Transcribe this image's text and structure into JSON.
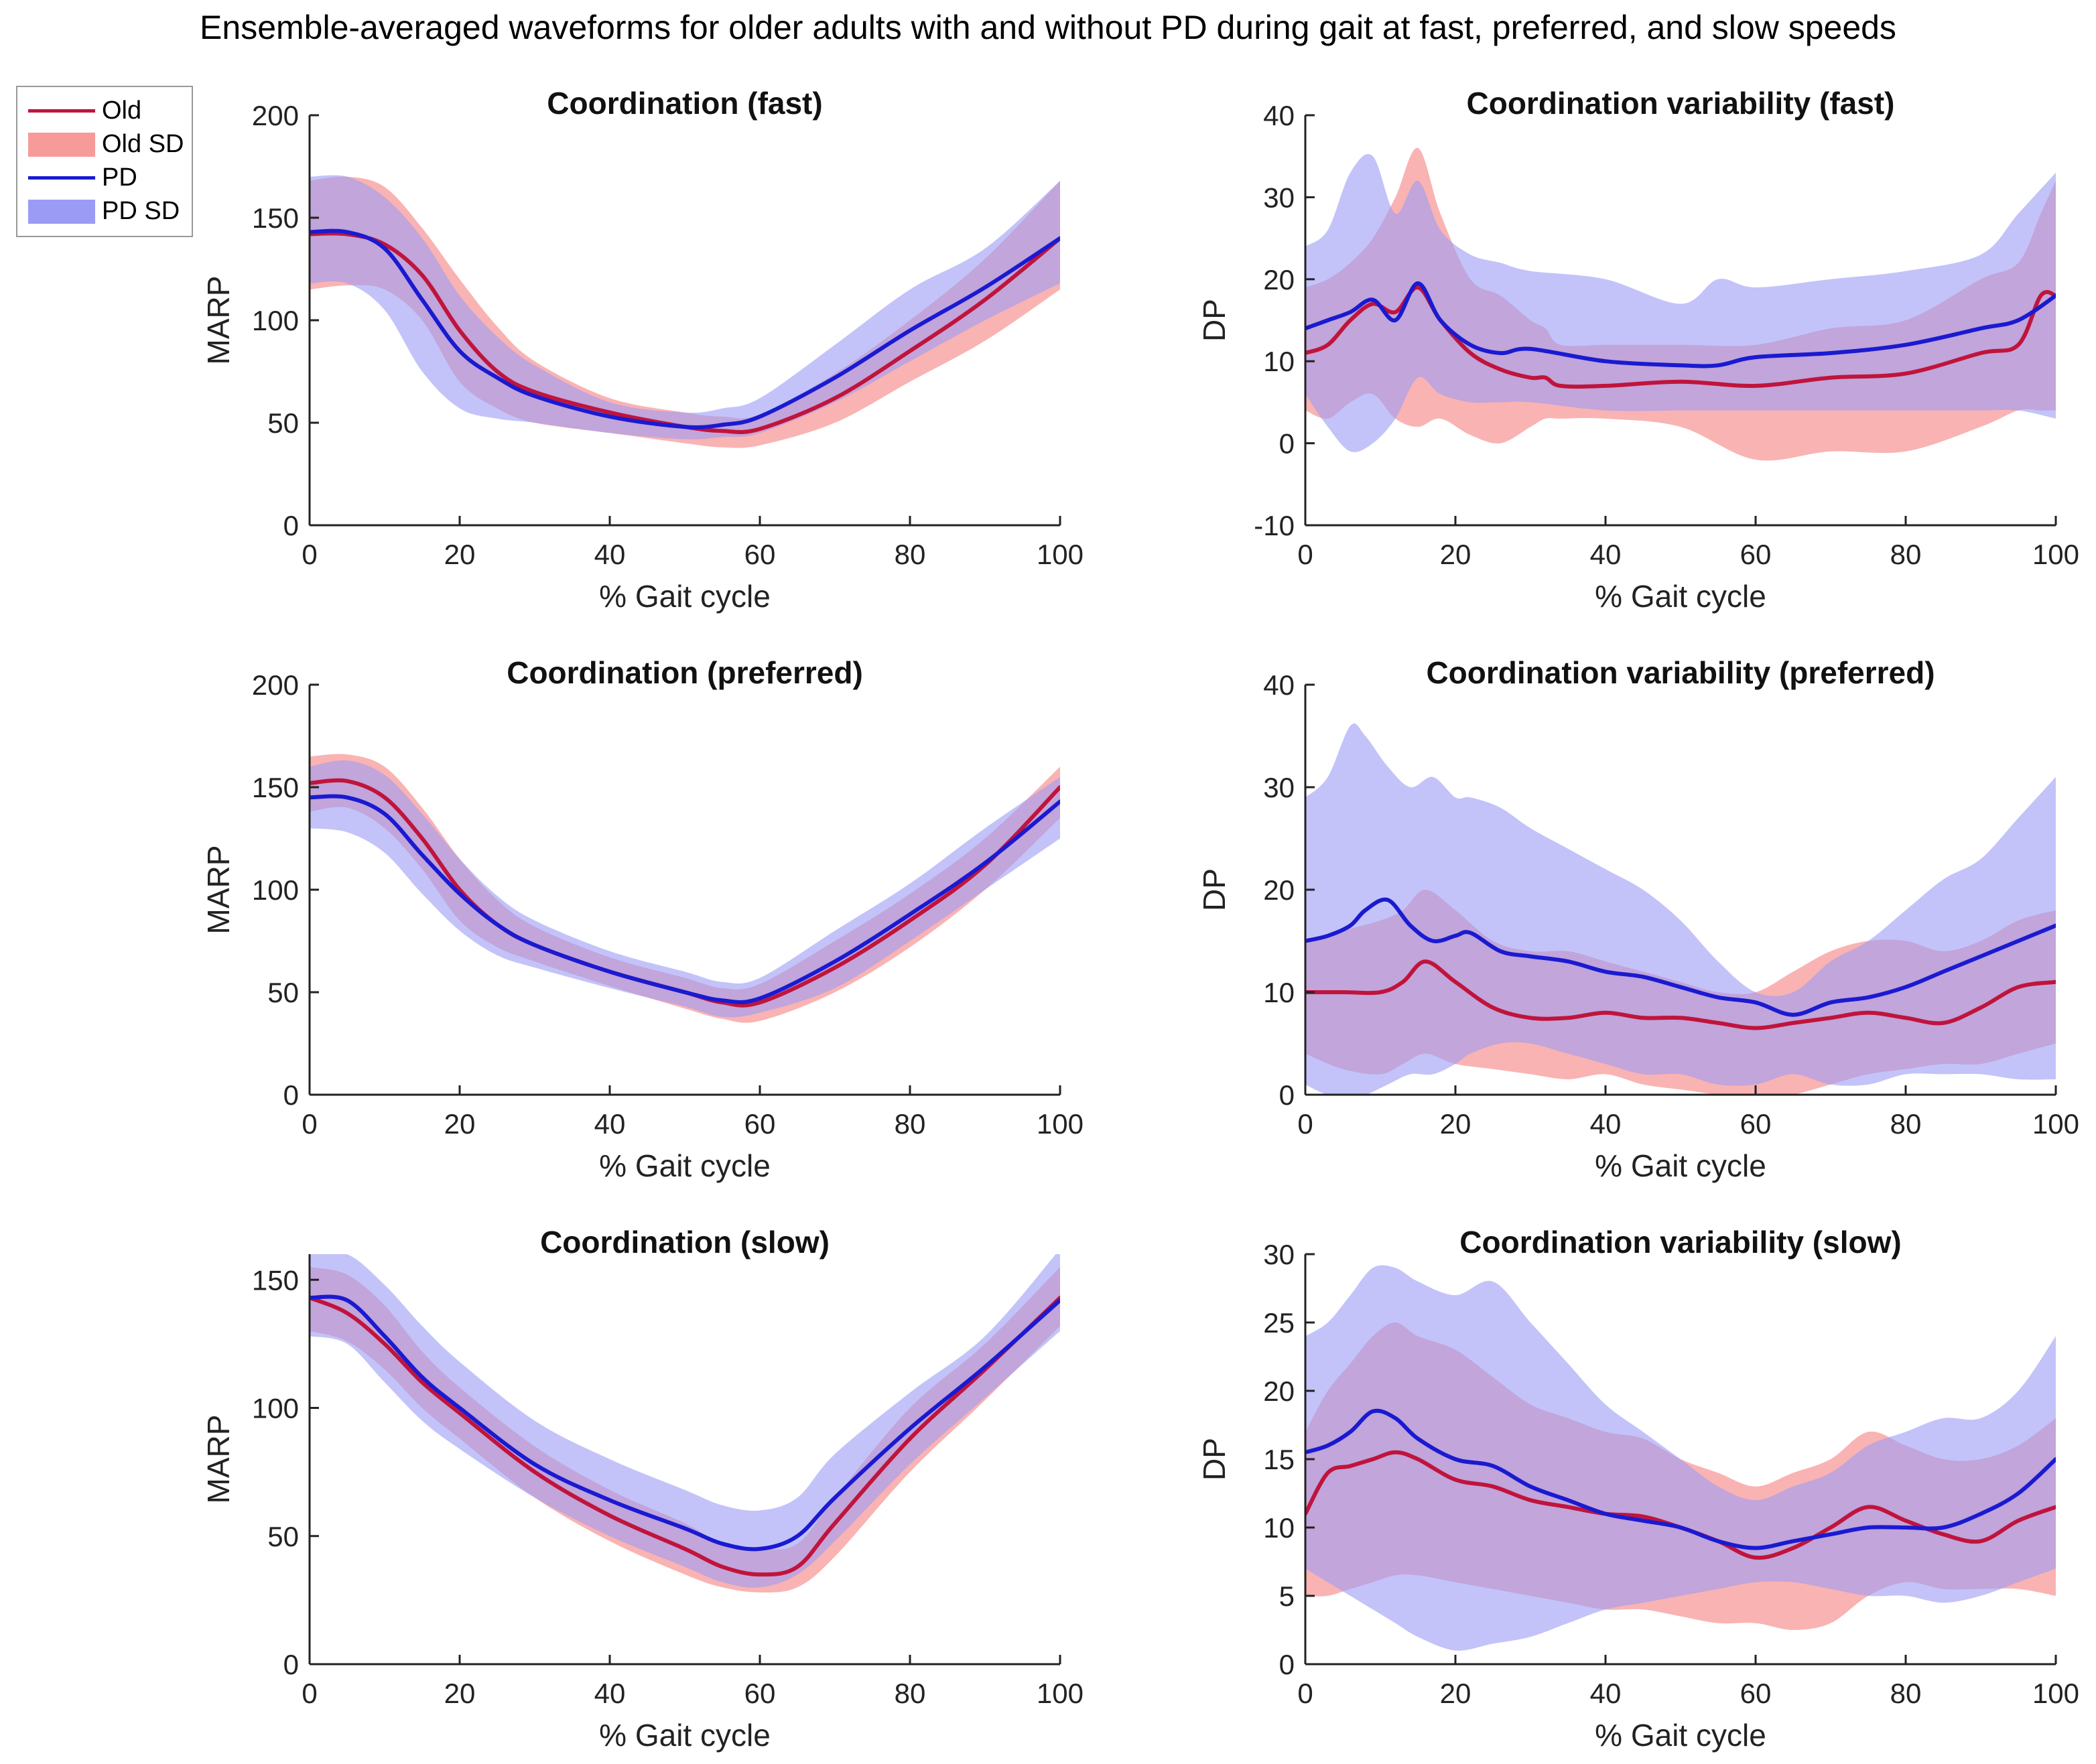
{
  "figure_title": "Ensemble-averaged waveforms for older adults with and without PD during gait at fast, preferred, and slow speeds",
  "colors": {
    "old_line": "#c0143c",
    "old_fill": "#f79a9a",
    "pd_line": "#1a1ad0",
    "pd_fill": "#9b9bf5"
  },
  "legend": {
    "items": [
      {
        "label": "Old",
        "kind": "line",
        "color_key": "old_line"
      },
      {
        "label": "Old SD",
        "kind": "fill",
        "color_key": "old_fill"
      },
      {
        "label": "PD",
        "kind": "line",
        "color_key": "pd_line"
      },
      {
        "label": "PD SD",
        "kind": "fill",
        "color_key": "pd_fill"
      }
    ]
  },
  "chart_data": [
    {
      "type": "line",
      "title": "Coordination (fast)",
      "xlabel": "% Gait cycle",
      "ylabel": "MARP",
      "xlim": [
        0,
        100
      ],
      "ylim": [
        0,
        200
      ],
      "xticks": [
        0,
        20,
        40,
        60,
        80,
        100
      ],
      "yticks": [
        0,
        50,
        100,
        150,
        200
      ],
      "series": [
        {
          "name": "Old",
          "x": [
            0,
            5,
            10,
            15,
            20,
            25,
            30,
            40,
            50,
            55,
            60,
            70,
            80,
            90,
            100
          ],
          "mean": [
            142,
            142,
            137,
            122,
            95,
            75,
            65,
            55,
            48,
            46,
            47,
            62,
            85,
            110,
            140
          ],
          "lower": [
            115,
            117,
            115,
            100,
            70,
            57,
            50,
            45,
            40,
            38,
            39,
            50,
            70,
            90,
            115
          ],
          "upper": [
            168,
            170,
            165,
            145,
            120,
            97,
            80,
            62,
            55,
            53,
            54,
            74,
            100,
            130,
            168
          ]
        },
        {
          "name": "PD",
          "x": [
            0,
            5,
            10,
            15,
            20,
            25,
            30,
            40,
            50,
            55,
            60,
            70,
            80,
            90,
            100
          ],
          "mean": [
            143,
            143,
            135,
            110,
            85,
            72,
            63,
            53,
            48,
            49,
            53,
            72,
            95,
            116,
            140
          ],
          "lower": [
            118,
            118,
            105,
            75,
            57,
            52,
            50,
            45,
            42,
            43,
            45,
            60,
            80,
            100,
            118
          ],
          "upper": [
            170,
            170,
            160,
            140,
            112,
            92,
            78,
            60,
            55,
            57,
            62,
            88,
            115,
            135,
            168
          ]
        }
      ]
    },
    {
      "type": "line",
      "title": "Coordination variability (fast)",
      "xlabel": "% Gait cycle",
      "ylabel": "DP",
      "xlim": [
        0,
        100
      ],
      "ylim": [
        -10,
        40
      ],
      "xticks": [
        0,
        20,
        40,
        60,
        80,
        100
      ],
      "yticks": [
        -10,
        0,
        10,
        20,
        30,
        40
      ],
      "series": [
        {
          "name": "Old",
          "x": [
            0,
            3,
            6,
            9,
            12,
            15,
            18,
            22,
            26,
            30,
            32,
            34,
            40,
            50,
            60,
            70,
            80,
            90,
            95,
            98,
            100
          ],
          "mean": [
            11,
            12,
            15,
            17,
            16,
            19,
            15,
            11,
            9,
            8,
            8,
            7,
            7,
            7.5,
            7,
            8,
            8.5,
            11,
            12,
            18,
            18
          ],
          "lower": [
            4,
            3,
            5,
            6,
            3,
            2,
            3,
            1,
            0,
            2,
            3,
            3,
            3,
            2,
            -2,
            -1,
            -1,
            2,
            4,
            4,
            4
          ],
          "upper": [
            19,
            20,
            22,
            25,
            30,
            36,
            28,
            20,
            18,
            15,
            14,
            12,
            12,
            12,
            12,
            14,
            15,
            20,
            22,
            28,
            32
          ]
        },
        {
          "name": "PD",
          "x": [
            0,
            3,
            6,
            9,
            12,
            15,
            18,
            22,
            26,
            30,
            40,
            50,
            55,
            60,
            70,
            80,
            90,
            95,
            100
          ],
          "mean": [
            14,
            15,
            16,
            17.5,
            15,
            19.5,
            15,
            12,
            11,
            11.5,
            10,
            9.5,
            9.5,
            10.5,
            11,
            12,
            14,
            15,
            18
          ],
          "lower": [
            6,
            2,
            -1,
            0,
            3,
            8,
            6,
            5,
            5,
            5,
            4,
            4,
            4,
            4,
            4,
            4,
            4,
            4,
            3
          ],
          "upper": [
            24,
            26,
            33,
            35,
            28,
            32,
            26,
            23,
            22,
            21,
            20,
            17,
            20,
            19,
            20,
            21,
            23,
            28,
            33
          ]
        }
      ]
    },
    {
      "type": "line",
      "title": "Coordination (preferred)",
      "xlabel": "% Gait cycle",
      "ylabel": "MARP",
      "xlim": [
        0,
        100
      ],
      "ylim": [
        0,
        200
      ],
      "xticks": [
        0,
        20,
        40,
        60,
        80,
        100
      ],
      "yticks": [
        0,
        50,
        100,
        150,
        200
      ],
      "series": [
        {
          "name": "Old",
          "x": [
            0,
            5,
            10,
            15,
            20,
            25,
            30,
            40,
            50,
            55,
            60,
            70,
            80,
            90,
            100
          ],
          "mean": [
            152,
            153,
            145,
            125,
            100,
            83,
            73,
            60,
            50,
            45,
            45,
            62,
            85,
            112,
            150
          ],
          "lower": [
            138,
            140,
            130,
            110,
            85,
            72,
            65,
            53,
            42,
            37,
            36,
            50,
            72,
            100,
            135
          ],
          "upper": [
            165,
            166,
            160,
            140,
            115,
            95,
            82,
            67,
            57,
            52,
            54,
            75,
            98,
            125,
            160
          ]
        },
        {
          "name": "PD",
          "x": [
            0,
            5,
            10,
            15,
            20,
            25,
            30,
            40,
            50,
            55,
            60,
            70,
            80,
            90,
            100
          ],
          "mean": [
            145,
            145,
            137,
            117,
            98,
            83,
            73,
            60,
            50,
            46,
            47,
            65,
            88,
            113,
            143
          ],
          "lower": [
            130,
            128,
            118,
            98,
            80,
            68,
            62,
            52,
            43,
            38,
            40,
            52,
            75,
            100,
            125
          ],
          "upper": [
            160,
            163,
            156,
            137,
            115,
            97,
            85,
            70,
            60,
            55,
            57,
            80,
            103,
            130,
            155
          ]
        }
      ]
    },
    {
      "type": "line",
      "title": "Coordination variability (preferred)",
      "xlabel": "% Gait cycle",
      "ylabel": "DP",
      "xlim": [
        0,
        100
      ],
      "ylim": [
        0,
        40
      ],
      "xticks": [
        0,
        20,
        40,
        60,
        80,
        100
      ],
      "yticks": [
        0,
        10,
        20,
        30,
        40
      ],
      "series": [
        {
          "name": "Old",
          "x": [
            0,
            5,
            10,
            13,
            16,
            20,
            25,
            30,
            35,
            40,
            45,
            50,
            55,
            60,
            65,
            70,
            75,
            80,
            85,
            90,
            95,
            100
          ],
          "mean": [
            10,
            10,
            10,
            11,
            13,
            11,
            8.5,
            7.5,
            7.5,
            8,
            7.5,
            7.5,
            7,
            6.5,
            7,
            7.5,
            8,
            7.5,
            7,
            8.5,
            10.5,
            11
          ],
          "lower": [
            4,
            2.5,
            2,
            3,
            4,
            3,
            2.5,
            2,
            1.5,
            2,
            1,
            0.5,
            0,
            -0.5,
            0,
            1,
            2,
            2.5,
            3,
            3,
            4,
            5
          ],
          "upper": [
            15,
            16,
            17,
            18,
            20,
            18,
            15,
            14,
            14,
            13,
            12,
            11,
            10,
            10,
            12,
            14,
            15,
            15,
            14,
            15,
            17,
            18
          ]
        },
        {
          "name": "PD",
          "x": [
            0,
            3,
            6,
            8,
            11,
            14,
            17,
            20,
            22,
            26,
            30,
            35,
            40,
            45,
            50,
            55,
            60,
            65,
            70,
            75,
            80,
            85,
            90,
            95,
            100
          ],
          "mean": [
            15,
            15.5,
            16.5,
            18,
            19,
            16.5,
            15,
            15.5,
            15.8,
            14,
            13.5,
            13,
            12,
            11.5,
            10.5,
            9.5,
            9,
            7.8,
            9,
            9.5,
            10.5,
            12,
            13.5,
            15,
            16.5
          ],
          "lower": [
            1,
            0,
            0,
            0,
            1,
            2,
            2,
            3,
            4,
            5,
            5,
            4,
            3,
            2,
            2,
            1,
            1,
            2,
            1,
            1,
            2,
            2,
            2,
            1.5,
            1.5
          ],
          "upper": [
            29,
            31,
            36,
            35,
            32,
            30,
            31,
            29,
            29,
            28,
            26,
            24,
            22,
            20,
            17,
            13,
            10,
            10,
            13,
            15,
            18,
            21,
            23,
            27,
            31
          ]
        }
      ]
    },
    {
      "type": "line",
      "title": "Coordination (slow)",
      "xlabel": "% Gait cycle",
      "ylabel": "MARP",
      "xlim": [
        0,
        100
      ],
      "ylim": [
        0,
        160
      ],
      "xticks": [
        0,
        20,
        40,
        60,
        80,
        100
      ],
      "yticks": [
        0,
        50,
        100,
        150
      ],
      "series": [
        {
          "name": "Old",
          "x": [
            0,
            5,
            10,
            15,
            20,
            30,
            40,
            50,
            55,
            60,
            65,
            70,
            80,
            90,
            100
          ],
          "mean": [
            143,
            137,
            125,
            110,
            98,
            75,
            58,
            45,
            38,
            35,
            38,
            55,
            88,
            115,
            143
          ],
          "lower": [
            130,
            126,
            115,
            100,
            88,
            65,
            48,
            35,
            30,
            28,
            30,
            42,
            75,
            103,
            132
          ],
          "upper": [
            155,
            152,
            140,
            122,
            108,
            85,
            68,
            55,
            47,
            45,
            47,
            65,
            100,
            125,
            155
          ]
        },
        {
          "name": "PD",
          "x": [
            0,
            5,
            10,
            15,
            20,
            30,
            40,
            50,
            55,
            60,
            65,
            70,
            80,
            90,
            100
          ],
          "mean": [
            143,
            142,
            128,
            112,
            100,
            78,
            64,
            53,
            47,
            45,
            50,
            65,
            92,
            116,
            142
          ],
          "lower": [
            128,
            125,
            110,
            95,
            84,
            65,
            50,
            38,
            32,
            30,
            35,
            48,
            78,
            104,
            130
          ],
          "upper": [
            160,
            160,
            148,
            132,
            118,
            95,
            80,
            68,
            62,
            60,
            65,
            82,
            106,
            128,
            162
          ]
        }
      ]
    },
    {
      "type": "line",
      "title": "Coordination variability (slow)",
      "xlabel": "% Gait cycle",
      "ylabel": "DP",
      "xlim": [
        0,
        100
      ],
      "ylim": [
        0,
        30
      ],
      "xticks": [
        0,
        20,
        40,
        60,
        80,
        100
      ],
      "yticks": [
        0,
        5,
        10,
        15,
        20,
        25,
        30
      ],
      "series": [
        {
          "name": "Old",
          "x": [
            0,
            3,
            6,
            9,
            12,
            15,
            20,
            25,
            30,
            35,
            40,
            45,
            50,
            55,
            60,
            65,
            70,
            75,
            80,
            85,
            90,
            95,
            100
          ],
          "mean": [
            11,
            14,
            14.5,
            15,
            15.5,
            15,
            13.5,
            13,
            12,
            11.5,
            11,
            10.8,
            10,
            9,
            7.8,
            8.5,
            10,
            11.5,
            10.5,
            9.5,
            9,
            10.5,
            11.5
          ],
          "lower": [
            5,
            5,
            5.5,
            6,
            6.5,
            6.5,
            6,
            5.5,
            5,
            4.5,
            4,
            4,
            3.5,
            3,
            3,
            2.5,
            3,
            5,
            6,
            5.5,
            5.5,
            5.5,
            5
          ],
          "upper": [
            17,
            20,
            22,
            24,
            25,
            24,
            23,
            21,
            19,
            18,
            17,
            16.5,
            15,
            14,
            13,
            14,
            15,
            17,
            16,
            15,
            15,
            16,
            18
          ]
        },
        {
          "name": "PD",
          "x": [
            0,
            3,
            6,
            9,
            12,
            15,
            20,
            25,
            30,
            35,
            40,
            45,
            50,
            55,
            60,
            65,
            70,
            75,
            80,
            85,
            90,
            95,
            100
          ],
          "mean": [
            15.5,
            16,
            17,
            18.5,
            18,
            16.5,
            15,
            14.5,
            13,
            12,
            11,
            10.5,
            10,
            9,
            8.5,
            9,
            9.5,
            10,
            10,
            10,
            11,
            12.5,
            15
          ],
          "lower": [
            7,
            6,
            5,
            4,
            3,
            2,
            1,
            1.5,
            2,
            3,
            4,
            4.5,
            5,
            5.5,
            6,
            6,
            5.5,
            5,
            5,
            4.5,
            5,
            6,
            7
          ],
          "upper": [
            24,
            25,
            27,
            29,
            29,
            28,
            27,
            28,
            25,
            22,
            19,
            17,
            15,
            13,
            12,
            13,
            14,
            16,
            17,
            18,
            18,
            20,
            24
          ]
        }
      ]
    }
  ]
}
